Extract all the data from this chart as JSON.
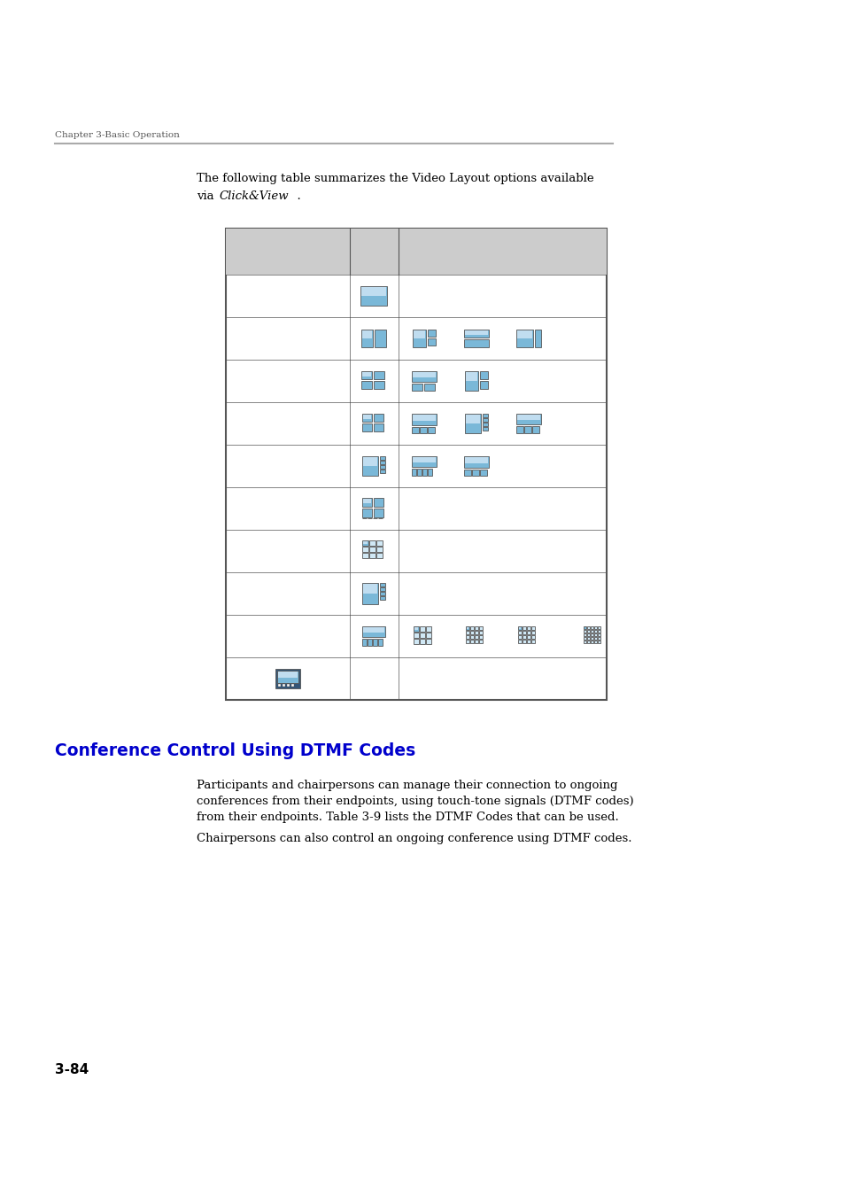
{
  "title": "Chapter 3-Basic Operation",
  "header_line_color": "#aaaaaa",
  "section_heading": "Conference Control Using DTMF Codes",
  "section_heading_color": "#0000CC",
  "para1_line1": "Participants and chairpersons can manage their connection to ongoing",
  "para1_line2": "conferences from their endpoints, using touch-tone signals (DTMF codes)",
  "para1_line3": "from their endpoints. Table 3-9 lists the DTMF Codes that can be used.",
  "para2": "Chairpersons can also control an ongoing conference using DTMF codes.",
  "page_number": "3-84",
  "table_border_color": "#555555",
  "table_bg_header": "#cccccc",
  "icon_blue_light": "#7ab8d8",
  "icon_blue_mid": "#5598c0",
  "icon_border": "#555555",
  "icon_bg": "#d0e8f5"
}
